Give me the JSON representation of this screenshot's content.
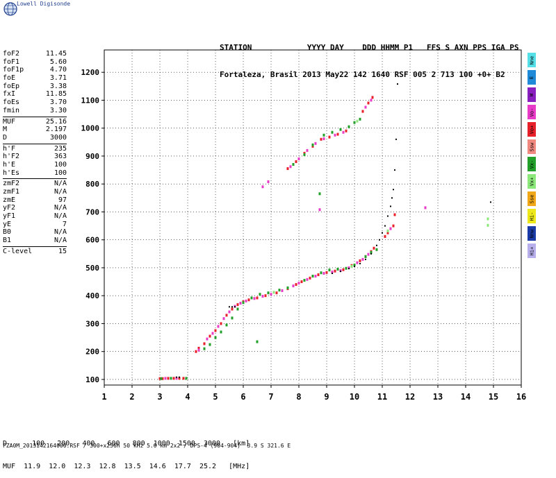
{
  "brand": {
    "name": "Lowell Digisonde",
    "logo_icon": "globe-icon"
  },
  "header": {
    "line1": "STATION            YYYY DAY    DDD HHMM P1   FFS S AXN PPS IGA PS",
    "line2": "Fortaleza, Brasil 2013 May22 142 1640 RSF 005 2 713 100 +0+ B2"
  },
  "params": {
    "group1": [
      {
        "label": "foF2",
        "value": "11.45"
      },
      {
        "label": "foF1",
        "value": "5.60"
      },
      {
        "label": "foF1p",
        "value": "4.70"
      },
      {
        "label": "foE",
        "value": "3.71"
      },
      {
        "label": "foEp",
        "value": "3.38"
      },
      {
        "label": "fxI",
        "value": "11.85"
      },
      {
        "label": "foEs",
        "value": "3.70"
      },
      {
        "label": "fmin",
        "value": "3.30"
      }
    ],
    "group2": [
      {
        "label": "MUF",
        "value": "25.16"
      },
      {
        "label": "M",
        "value": "2.197"
      },
      {
        "label": "D",
        "value": "3000"
      }
    ],
    "group3": [
      {
        "label": "h'F",
        "value": "235"
      },
      {
        "label": "h'F2",
        "value": "363"
      },
      {
        "label": "h'E",
        "value": "100"
      },
      {
        "label": "h'Es",
        "value": "100"
      }
    ],
    "group4": [
      {
        "label": "zmF2",
        "value": "N/A"
      },
      {
        "label": "zmF1",
        "value": "N/A"
      },
      {
        "label": "zmE",
        "value": "97"
      },
      {
        "label": "yF2",
        "value": "N/A"
      },
      {
        "label": "yF1",
        "value": "N/A"
      },
      {
        "label": "yE",
        "value": "7"
      },
      {
        "label": "B0",
        "value": "N/A"
      },
      {
        "label": "B1",
        "value": "N/A"
      }
    ],
    "group5": [
      {
        "label": "C-level",
        "value": "15"
      }
    ]
  },
  "legend": [
    {
      "label": "Nne",
      "color": "#55e0e8"
    },
    {
      "label": "E",
      "color": "#1f8ad8"
    },
    {
      "label": "W",
      "color": "#8a1fbf"
    },
    {
      "label": "Vo-",
      "color": "#e83cc8"
    },
    {
      "label": "Vo+",
      "color": "#e8202a"
    },
    {
      "label": "Ssw",
      "color": "#f08a80"
    },
    {
      "label": "Vx-",
      "color": "#22a02a"
    },
    {
      "label": "Vx+",
      "color": "#8ce87a"
    },
    {
      "label": "Sse",
      "color": "#f0a818"
    },
    {
      "label": "Hi-",
      "color": "#ece81a"
    },
    {
      "label": "Nnw",
      "color": "#1a3aa8"
    },
    {
      "label": "Hi+",
      "color": "#b8b0ec"
    }
  ],
  "footer": {
    "line1": "D      100   200   400   600   800  1000  1500  3000   [km]",
    "line2": "MUF  11.9  12.0  12.3  12.8  13.5  14.6  17.7  25.2   [MHz]",
    "line3": "FZA0M_2013142164000.RSF / 300+x256h 50 kHz 5.0 km 2x2 / DPS-4 (904-904)  3.9 S 321.6 E"
  },
  "chart_data": {
    "type": "scatter",
    "xlim": [
      1,
      16
    ],
    "ylim": [
      80,
      1280
    ],
    "x_ticks": [
      1,
      2,
      3,
      4,
      5,
      6,
      7,
      8,
      9,
      10,
      11,
      12,
      13,
      14,
      15,
      16
    ],
    "y_ticks": [
      100,
      200,
      300,
      400,
      500,
      600,
      700,
      800,
      900,
      1000,
      1100,
      1200
    ],
    "grid": true,
    "xlabel": "",
    "ylabel": "",
    "series": [
      {
        "color": "#e8202a",
        "points": [
          [
            3.0,
            103
          ],
          [
            3.1,
            103
          ],
          [
            3.3,
            104
          ],
          [
            3.5,
            104
          ],
          [
            3.7,
            104
          ],
          [
            3.85,
            104
          ],
          [
            4.3,
            200
          ],
          [
            4.4,
            212
          ],
          [
            4.6,
            228
          ],
          [
            4.8,
            255
          ],
          [
            5.0,
            275
          ],
          [
            5.2,
            300
          ],
          [
            5.4,
            330
          ],
          [
            5.6,
            352
          ],
          [
            5.8,
            368
          ],
          [
            6.0,
            378
          ],
          [
            6.2,
            385
          ],
          [
            6.5,
            392
          ],
          [
            6.8,
            400
          ],
          [
            7.2,
            410
          ],
          [
            7.6,
            425
          ],
          [
            7.9,
            440
          ],
          [
            8.1,
            450
          ],
          [
            8.4,
            463
          ],
          [
            8.7,
            475
          ],
          [
            9.0,
            483
          ],
          [
            9.3,
            488
          ],
          [
            9.6,
            493
          ],
          [
            9.9,
            508
          ],
          [
            10.2,
            525
          ],
          [
            10.4,
            540
          ],
          [
            10.6,
            558
          ],
          [
            10.7,
            570
          ],
          [
            11.1,
            612
          ],
          [
            11.2,
            625
          ],
          [
            11.4,
            650
          ],
          [
            11.45,
            690
          ],
          [
            7.6,
            855
          ],
          [
            7.9,
            880
          ],
          [
            8.2,
            910
          ],
          [
            8.5,
            935
          ],
          [
            8.8,
            960
          ],
          [
            9.1,
            968
          ],
          [
            9.4,
            978
          ],
          [
            9.7,
            990
          ],
          [
            10.3,
            1060
          ],
          [
            10.5,
            1090
          ],
          [
            10.65,
            1110
          ]
        ]
      },
      {
        "color": "#e83cc8",
        "points": [
          [
            3.2,
            104
          ],
          [
            3.6,
            104
          ],
          [
            4.4,
            205
          ],
          [
            4.7,
            245
          ],
          [
            4.9,
            265
          ],
          [
            5.1,
            290
          ],
          [
            5.3,
            318
          ],
          [
            5.5,
            342
          ],
          [
            5.7,
            362
          ],
          [
            5.9,
            373
          ],
          [
            6.1,
            381
          ],
          [
            6.4,
            390
          ],
          [
            6.7,
            398
          ],
          [
            7.0,
            405
          ],
          [
            7.4,
            418
          ],
          [
            7.8,
            435
          ],
          [
            8.0,
            445
          ],
          [
            8.3,
            458
          ],
          [
            8.6,
            470
          ],
          [
            8.9,
            480
          ],
          [
            9.2,
            485
          ],
          [
            9.5,
            490
          ],
          [
            9.8,
            500
          ],
          [
            10.1,
            518
          ],
          [
            10.3,
            530
          ],
          [
            10.5,
            548
          ],
          [
            11.3,
            640
          ],
          [
            6.7,
            790
          ],
          [
            6.9,
            808
          ],
          [
            7.7,
            862
          ],
          [
            8.0,
            890
          ],
          [
            8.3,
            920
          ],
          [
            8.6,
            945
          ],
          [
            8.9,
            962
          ],
          [
            9.3,
            975
          ],
          [
            9.6,
            985
          ],
          [
            10.4,
            1075
          ],
          [
            10.6,
            1100
          ],
          [
            12.55,
            715
          ],
          [
            8.75,
            708
          ]
        ]
      },
      {
        "color": "#22a02a",
        "points": [
          [
            3.05,
            103
          ],
          [
            3.4,
            104
          ],
          [
            3.95,
            104
          ],
          [
            4.6,
            210
          ],
          [
            4.8,
            225
          ],
          [
            5.0,
            250
          ],
          [
            5.2,
            270
          ],
          [
            5.4,
            295
          ],
          [
            5.6,
            320
          ],
          [
            5.8,
            352
          ],
          [
            6.0,
            375
          ],
          [
            6.3,
            392
          ],
          [
            6.6,
            405
          ],
          [
            6.9,
            410
          ],
          [
            7.3,
            420
          ],
          [
            7.6,
            428
          ],
          [
            8.2,
            455
          ],
          [
            8.5,
            470
          ],
          [
            8.8,
            482
          ],
          [
            9.1,
            492
          ],
          [
            9.4,
            495
          ],
          [
            9.7,
            498
          ],
          [
            10.0,
            510
          ],
          [
            10.4,
            540
          ],
          [
            10.6,
            555
          ],
          [
            10.8,
            565
          ],
          [
            7.8,
            870
          ],
          [
            8.2,
            905
          ],
          [
            8.5,
            940
          ],
          [
            8.9,
            975
          ],
          [
            9.2,
            985
          ],
          [
            9.5,
            995
          ],
          [
            9.8,
            1005
          ],
          [
            10.0,
            1020
          ],
          [
            10.2,
            1032
          ],
          [
            8.75,
            765
          ],
          [
            6.5,
            235
          ]
        ]
      },
      {
        "color": "#8ce87a",
        "points": [
          [
            7.1,
            412
          ],
          [
            9.9,
            505
          ],
          [
            10.1,
            1025
          ],
          [
            14.8,
            652
          ],
          [
            14.8,
            675
          ],
          [
            11.2,
            632
          ]
        ]
      },
      {
        "color": "#000000",
        "points": [
          [
            5.5,
            360
          ],
          [
            5.6,
            360
          ],
          [
            5.7,
            360
          ],
          [
            9.2,
            480
          ],
          [
            9.5,
            487
          ],
          [
            9.8,
            497
          ],
          [
            10.0,
            505
          ],
          [
            10.2,
            515
          ],
          [
            10.4,
            530
          ],
          [
            10.6,
            550
          ],
          [
            10.8,
            580
          ],
          [
            10.9,
            600
          ],
          [
            11.0,
            625
          ],
          [
            11.1,
            650
          ],
          [
            11.2,
            685
          ],
          [
            11.3,
            720
          ],
          [
            11.35,
            750
          ],
          [
            11.4,
            780
          ],
          [
            11.45,
            850
          ],
          [
            11.5,
            960
          ],
          [
            11.55,
            1158
          ],
          [
            14.9,
            735
          ],
          [
            3.6,
            108
          ],
          [
            3.7,
            108
          ]
        ]
      }
    ]
  }
}
